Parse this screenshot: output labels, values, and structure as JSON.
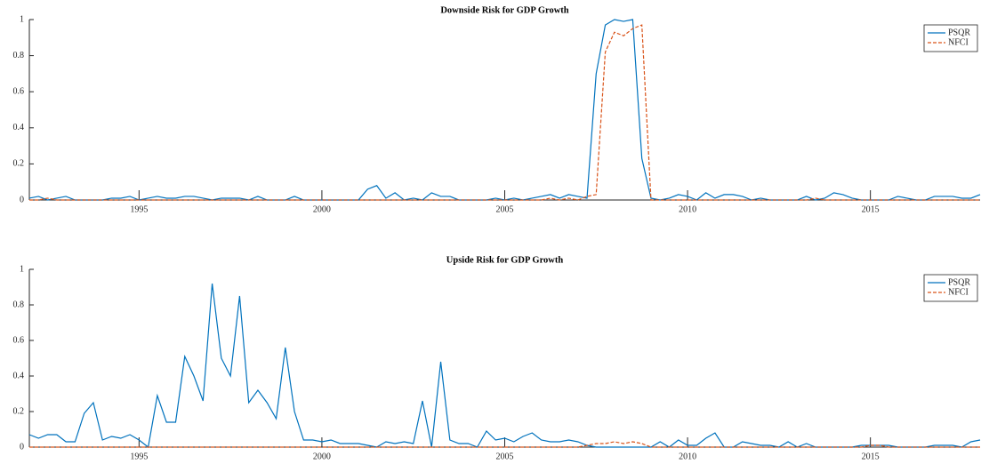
{
  "chart_data": [
    {
      "type": "line",
      "title": "Downside Risk for GDP Growth",
      "x": [
        1992,
        1992.25,
        1992.5,
        1992.75,
        1993,
        1993.25,
        1993.5,
        1993.75,
        1994,
        1994.25,
        1994.5,
        1994.75,
        1995,
        1995.25,
        1995.5,
        1995.75,
        1996,
        1996.25,
        1996.5,
        1996.75,
        1997,
        1997.25,
        1997.5,
        1997.75,
        1998,
        1998.25,
        1998.5,
        1998.75,
        1999,
        1999.25,
        1999.5,
        1999.75,
        2000,
        2000.25,
        2000.5,
        2000.75,
        2001,
        2001.25,
        2001.5,
        2001.75,
        2002,
        2002.25,
        2002.5,
        2002.75,
        2003,
        2003.25,
        2003.5,
        2003.75,
        2004,
        2004.25,
        2004.5,
        2004.75,
        2005,
        2005.25,
        2005.5,
        2005.75,
        2006,
        2006.25,
        2006.5,
        2006.75,
        2007,
        2007.25,
        2007.5,
        2007.75,
        2008,
        2008.25,
        2008.5,
        2008.75,
        2009,
        2009.25,
        2009.5,
        2009.75,
        2010,
        2010.25,
        2010.5,
        2010.75,
        2011,
        2011.25,
        2011.5,
        2011.75,
        2012,
        2012.25,
        2012.5,
        2012.75,
        2013,
        2013.25,
        2013.5,
        2013.75,
        2014,
        2014.25,
        2014.5,
        2014.75,
        2015,
        2015.25,
        2015.5,
        2015.75,
        2016,
        2016.25,
        2016.5,
        2016.75,
        2017,
        2017.25,
        2017.5,
        2017.75,
        2018
      ],
      "series": [
        {
          "name": "PSQR",
          "color": "#0072bd",
          "dash": "solid",
          "values": [
            0.01,
            0.02,
            0,
            0.01,
            0.02,
            0,
            0,
            0,
            0,
            0.01,
            0.01,
            0.02,
            0,
            0.01,
            0.02,
            0.01,
            0.01,
            0.02,
            0.02,
            0.01,
            0,
            0.01,
            0.01,
            0.01,
            0,
            0.02,
            0,
            0,
            0,
            0.02,
            0,
            0,
            0,
            0,
            0,
            0,
            0,
            0.06,
            0.08,
            0.01,
            0.04,
            0,
            0.01,
            0,
            0.04,
            0.02,
            0.02,
            0,
            0,
            0,
            0,
            0.01,
            0,
            0.01,
            0,
            0.01,
            0.02,
            0.03,
            0.01,
            0.03,
            0.02,
            0.01,
            0.7,
            0.97,
            1.0,
            0.99,
            1.0,
            0.23,
            0.01,
            0,
            0.01,
            0.03,
            0.02,
            0,
            0.04,
            0.01,
            0.03,
            0.03,
            0.02,
            0,
            0.01,
            0,
            0,
            0,
            0,
            0.02,
            0,
            0.01,
            0.04,
            0.03,
            0.01,
            0,
            0,
            0,
            0,
            0.02,
            0.01,
            0,
            0,
            0.02,
            0.02,
            0.02,
            0.01,
            0.01,
            0.03
          ]
        },
        {
          "name": "NFCI",
          "color": "#d95319",
          "dash": "dashed",
          "values": [
            0,
            0,
            0.01,
            0,
            0,
            0,
            0,
            0,
            0,
            0,
            0,
            0,
            0,
            0,
            0,
            0,
            0,
            0,
            0,
            0,
            0,
            0,
            0,
            0,
            0,
            0,
            0,
            0,
            0,
            0,
            0,
            0,
            0,
            0,
            0,
            0,
            0,
            0,
            0,
            0,
            0,
            0,
            0,
            0,
            0,
            0,
            0,
            0,
            0,
            0,
            0,
            0,
            0,
            0,
            0,
            0,
            0,
            0.01,
            0,
            0.01,
            0,
            0.02,
            0.03,
            0.82,
            0.93,
            0.91,
            0.95,
            0.97,
            0,
            0,
            0,
            0,
            0,
            0,
            0,
            0,
            0,
            0,
            0,
            0,
            0,
            0,
            0,
            0,
            0,
            0,
            0.01,
            0,
            0,
            0,
            0,
            0,
            0,
            0,
            0,
            0,
            0,
            0,
            0,
            0,
            0,
            0,
            0,
            0,
            0
          ]
        }
      ],
      "xlim": [
        1992,
        2018
      ],
      "ylim": [
        0,
        1
      ],
      "xticks": [
        1995,
        2000,
        2005,
        2010,
        2015
      ],
      "yticks": [
        0,
        0.2,
        0.4,
        0.6,
        0.8,
        1
      ],
      "legend": "upper right"
    },
    {
      "type": "line",
      "title": "Upside Risk for GDP Growth",
      "x": [
        1992,
        1992.25,
        1992.5,
        1992.75,
        1993,
        1993.25,
        1993.5,
        1993.75,
        1994,
        1994.25,
        1994.5,
        1994.75,
        1995,
        1995.25,
        1995.5,
        1995.75,
        1996,
        1996.25,
        1996.5,
        1996.75,
        1997,
        1997.25,
        1997.5,
        1997.75,
        1998,
        1998.25,
        1998.5,
        1998.75,
        1999,
        1999.25,
        1999.5,
        1999.75,
        2000,
        2000.25,
        2000.5,
        2000.75,
        2001,
        2001.25,
        2001.5,
        2001.75,
        2002,
        2002.25,
        2002.5,
        2002.75,
        2003,
        2003.25,
        2003.5,
        2003.75,
        2004,
        2004.25,
        2004.5,
        2004.75,
        2005,
        2005.25,
        2005.5,
        2005.75,
        2006,
        2006.25,
        2006.5,
        2006.75,
        2007,
        2007.25,
        2007.5,
        2007.75,
        2008,
        2008.25,
        2008.5,
        2008.75,
        2009,
        2009.25,
        2009.5,
        2009.75,
        2010,
        2010.25,
        2010.5,
        2010.75,
        2011,
        2011.25,
        2011.5,
        2011.75,
        2012,
        2012.25,
        2012.5,
        2012.75,
        2013,
        2013.25,
        2013.5,
        2013.75,
        2014,
        2014.25,
        2014.5,
        2014.75,
        2015,
        2015.25,
        2015.5,
        2015.75,
        2016,
        2016.25,
        2016.5,
        2016.75,
        2017,
        2017.25,
        2017.5,
        2017.75,
        2018
      ],
      "series": [
        {
          "name": "PSQR",
          "color": "#0072bd",
          "dash": "solid",
          "values": [
            0.07,
            0.05,
            0.07,
            0.07,
            0.03,
            0.03,
            0.19,
            0.25,
            0.04,
            0.06,
            0.05,
            0.07,
            0.04,
            0,
            0.29,
            0.14,
            0.14,
            0.51,
            0.4,
            0.26,
            0.92,
            0.5,
            0.4,
            0.85,
            0.25,
            0.32,
            0.25,
            0.16,
            0.56,
            0.2,
            0.04,
            0.04,
            0.03,
            0.04,
            0.02,
            0.02,
            0.02,
            0.01,
            0,
            0.03,
            0.02,
            0.03,
            0.02,
            0.26,
            0,
            0.48,
            0.04,
            0.02,
            0.02,
            0,
            0.09,
            0.04,
            0.05,
            0.03,
            0.06,
            0.08,
            0.04,
            0.03,
            0.03,
            0.04,
            0.03,
            0.01,
            0,
            0,
            0,
            0,
            0,
            0,
            0,
            0.03,
            0,
            0.04,
            0.01,
            0.01,
            0.05,
            0.08,
            0,
            0,
            0.03,
            0.02,
            0.01,
            0.01,
            0,
            0.03,
            0,
            0.02,
            0,
            0,
            0,
            0,
            0,
            0.01,
            0.01,
            0.01,
            0.01,
            0,
            0,
            0,
            0,
            0.01,
            0.01,
            0.01,
            0,
            0.03,
            0.04
          ]
        },
        {
          "name": "NFCI",
          "color": "#d95319",
          "dash": "dashed",
          "values": [
            0,
            0,
            0,
            0,
            0,
            0,
            0,
            0,
            0,
            0,
            0,
            0,
            0,
            0,
            0,
            0,
            0,
            0,
            0,
            0,
            0,
            0,
            0,
            0,
            0,
            0,
            0,
            0,
            0,
            0,
            0,
            0,
            0,
            0,
            0,
            0,
            0,
            0,
            0,
            0,
            0,
            0,
            0,
            0,
            0,
            0,
            0,
            0,
            0,
            0,
            0,
            0,
            0,
            0,
            0,
            0,
            0,
            0,
            0,
            0,
            0,
            0.01,
            0.02,
            0.02,
            0.03,
            0.02,
            0.03,
            0.02,
            0,
            0,
            0,
            0,
            0,
            0,
            0,
            0,
            0,
            0,
            0,
            0,
            0,
            0,
            0,
            0,
            0,
            0,
            0,
            0,
            0,
            0,
            0,
            0,
            0.01,
            0.01,
            0,
            0,
            0,
            0,
            0,
            0,
            0,
            0,
            0,
            0,
            0
          ]
        }
      ],
      "xlim": [
        1992,
        2018
      ],
      "ylim": [
        0,
        1
      ],
      "xticks": [
        1995,
        2000,
        2005,
        2010,
        2015
      ],
      "yticks": [
        0,
        0.2,
        0.4,
        0.6,
        0.8,
        1
      ],
      "legend": "upper right"
    }
  ]
}
